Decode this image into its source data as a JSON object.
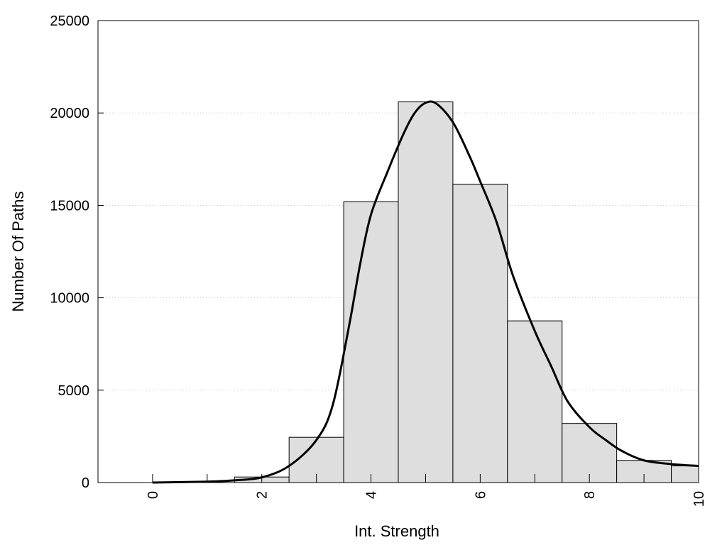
{
  "chart_data": {
    "type": "bar",
    "title": "",
    "xlabel": "Int. Strength",
    "ylabel": "Number Of Paths",
    "xlim": [
      -1,
      10
    ],
    "ylim": [
      0,
      25000
    ],
    "xticks": [
      0,
      2,
      4,
      6,
      8,
      10
    ],
    "yticks": [
      0,
      5000,
      10000,
      15000,
      20000,
      25000
    ],
    "grid": "horizontal dotted",
    "legend": "none",
    "bars": [
      {
        "x": 0,
        "value": 0
      },
      {
        "x": 1,
        "value": 0
      },
      {
        "x": 2,
        "value": 300
      },
      {
        "x": 3,
        "value": 2450
      },
      {
        "x": 4,
        "value": 15200
      },
      {
        "x": 5,
        "value": 20600
      },
      {
        "x": 6,
        "value": 16150
      },
      {
        "x": 7,
        "value": 8750
      },
      {
        "x": 8,
        "value": 3200
      },
      {
        "x": 9,
        "value": 1200
      },
      {
        "x": 10,
        "value": 900
      }
    ],
    "curve": {
      "x": [
        0,
        1,
        1.5,
        2,
        2.5,
        3,
        3.3,
        3.6,
        3.8,
        4,
        4.3,
        4.6,
        4.8,
        5,
        5.2,
        5.5,
        5.8,
        6,
        6.3,
        6.6,
        7,
        7.3,
        7.6,
        8,
        8.3,
        8.6,
        9,
        9.5,
        10
      ],
      "y": [
        0,
        50,
        120,
        280,
        900,
        2300,
        4200,
        8500,
        11800,
        14500,
        16800,
        18900,
        20000,
        20550,
        20500,
        19500,
        17700,
        16300,
        14100,
        11200,
        8200,
        6300,
        4400,
        3000,
        2300,
        1700,
        1200,
        1000,
        900
      ]
    },
    "colors": {
      "bar_fill": "#dedede",
      "bar_stroke": "#000000",
      "curve": "#000000",
      "grid": "#c8c8c8"
    }
  }
}
